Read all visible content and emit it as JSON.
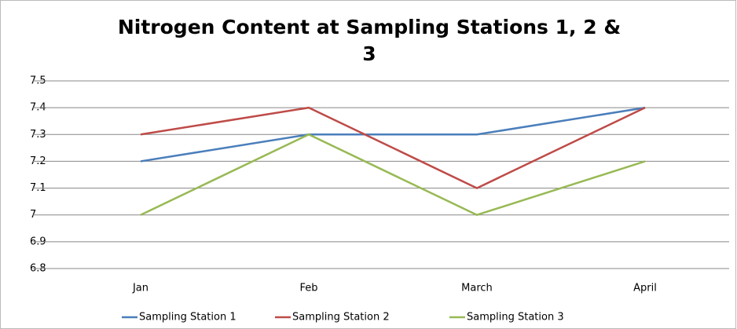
{
  "chart_data": {
    "type": "line",
    "title": "Nitrogen Content at Sampling Stations 1, 2 & 3",
    "categories": [
      "Jan",
      "Feb",
      "March",
      "April"
    ],
    "series": [
      {
        "name": "Sampling Station 1",
        "color": "#4a7ebb",
        "values": [
          7.2,
          7.3,
          7.3,
          7.4
        ]
      },
      {
        "name": "Sampling Station 2",
        "color": "#be4b48",
        "values": [
          7.3,
          7.4,
          7.1,
          7.4
        ]
      },
      {
        "name": "Sampling Station 3",
        "color": "#98b954",
        "values": [
          7.0,
          7.3,
          7.0,
          7.2
        ]
      }
    ],
    "ylim": [
      6.8,
      7.5
    ],
    "yticks": [
      6.8,
      6.9,
      7,
      7.1,
      7.2,
      7.3,
      7.4,
      7.5
    ],
    "grid": true,
    "legend": "bottom"
  }
}
